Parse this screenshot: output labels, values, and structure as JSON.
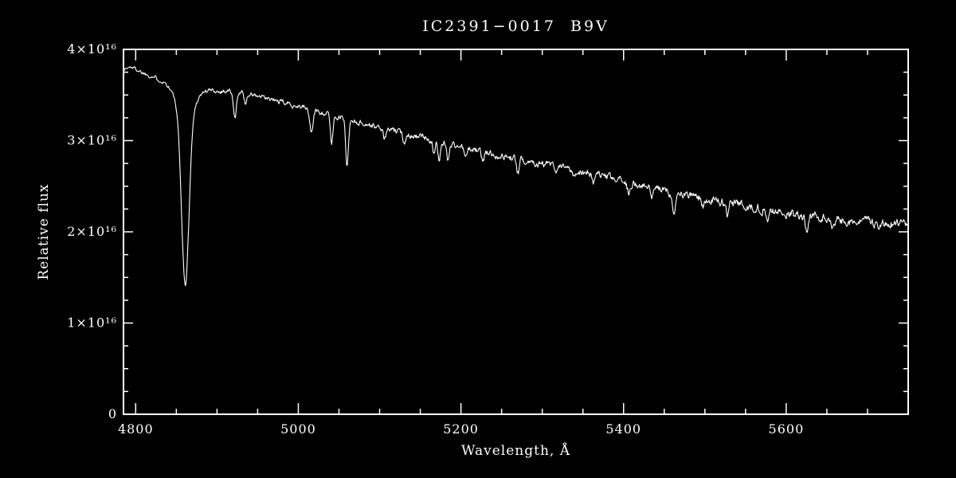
{
  "page": {
    "background": "#000000",
    "foreground": "#ffffff"
  },
  "chart_data": {
    "type": "line",
    "title": "IC2391−0017  B9V",
    "xlabel": "Wavelength, Å",
    "ylabel": "Relative flux",
    "xlim": [
      4785,
      5750
    ],
    "ylim": [
      0,
      4e+16
    ],
    "x_ticks": [
      4800,
      5000,
      5200,
      5400,
      5600
    ],
    "x_tick_labels": [
      "4800",
      "5000",
      "5200",
      "5400",
      "5600"
    ],
    "x_minor_step": 50,
    "y_ticks": [
      0,
      1e+16,
      2e+16,
      3e+16,
      4e+16
    ],
    "y_tick_labels": [
      "0",
      "1×10¹⁶",
      "2×10¹⁶",
      "3×10¹⁶",
      "4×10¹⁶"
    ],
    "y_minor_step": 2500000000000000.0,
    "flux_unit": 1e+16,
    "line_color": "#ffffff",
    "grid": false,
    "legend": null,
    "continuum": [
      [
        4785,
        3.78
      ],
      [
        4795,
        3.81
      ],
      [
        4810,
        3.74
      ],
      [
        4830,
        3.67
      ],
      [
        4861,
        3.62
      ],
      [
        4900,
        3.54
      ],
      [
        4925,
        3.55
      ],
      [
        4960,
        3.46
      ],
      [
        5000,
        3.38
      ],
      [
        5050,
        3.26
      ],
      [
        5100,
        3.14
      ],
      [
        5150,
        3.04
      ],
      [
        5200,
        2.93
      ],
      [
        5250,
        2.83
      ],
      [
        5300,
        2.75
      ],
      [
        5350,
        2.66
      ],
      [
        5400,
        2.55
      ],
      [
        5450,
        2.45
      ],
      [
        5500,
        2.36
      ],
      [
        5550,
        2.29
      ],
      [
        5600,
        2.2
      ],
      [
        5650,
        2.14
      ],
      [
        5700,
        2.1
      ],
      [
        5750,
        2.07
      ]
    ],
    "absorption_lines": [
      {
        "center": 4861,
        "depth": 1.85,
        "sigma": 4.5
      },
      {
        "center": 4861,
        "depth": 0.35,
        "sigma": 11
      },
      {
        "center": 4922,
        "depth": 0.3,
        "sigma": 2.0
      },
      {
        "center": 4935,
        "depth": 0.12,
        "sigma": 1.5
      },
      {
        "center": 5016,
        "depth": 0.25,
        "sigma": 2.0
      },
      {
        "center": 5041,
        "depth": 0.3,
        "sigma": 1.6
      },
      {
        "center": 5060,
        "depth": 0.5,
        "sigma": 1.7
      },
      {
        "center": 5106,
        "depth": 0.12,
        "sigma": 1.5
      },
      {
        "center": 5130,
        "depth": 0.1,
        "sigma": 1.5
      },
      {
        "center": 5167,
        "depth": 0.16,
        "sigma": 1.5
      },
      {
        "center": 5173,
        "depth": 0.2,
        "sigma": 1.5
      },
      {
        "center": 5184,
        "depth": 0.18,
        "sigma": 1.5
      },
      {
        "center": 5206,
        "depth": 0.12,
        "sigma": 1.5
      },
      {
        "center": 5227,
        "depth": 0.1,
        "sigma": 1.5
      },
      {
        "center": 5270,
        "depth": 0.16,
        "sigma": 1.6
      },
      {
        "center": 5317,
        "depth": 0.12,
        "sigma": 1.5
      },
      {
        "center": 5340,
        "depth": 0.08,
        "sigma": 1.5
      },
      {
        "center": 5363,
        "depth": 0.1,
        "sigma": 1.5
      },
      {
        "center": 5406,
        "depth": 0.1,
        "sigma": 1.5
      },
      {
        "center": 5435,
        "depth": 0.1,
        "sigma": 1.5
      },
      {
        "center": 5462,
        "depth": 0.25,
        "sigma": 1.8
      },
      {
        "center": 5497,
        "depth": 0.1,
        "sigma": 1.5
      },
      {
        "center": 5528,
        "depth": 0.14,
        "sigma": 1.5
      },
      {
        "center": 5577,
        "depth": 0.08,
        "sigma": 1.5
      },
      {
        "center": 5625,
        "depth": 0.13,
        "sigma": 1.6
      },
      {
        "center": 5658,
        "depth": 0.08,
        "sigma": 1.5
      }
    ],
    "noise": {
      "seed": 1337,
      "amplitude_blue": 0.018,
      "amplitude_red": 0.045,
      "smoothing": 0.55
    },
    "sample_step": 0.8
  }
}
